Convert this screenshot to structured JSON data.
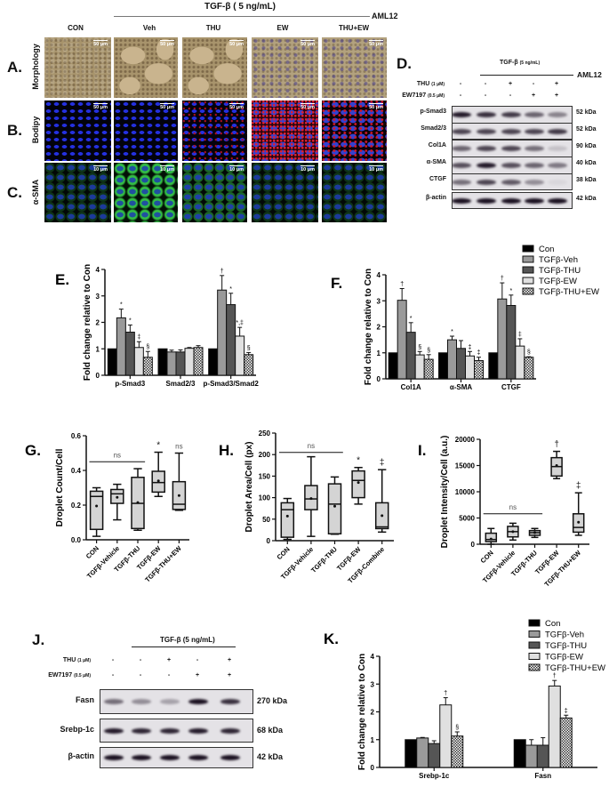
{
  "header": {
    "treatment": "TGF-β ( 5 ng/mL)",
    "cell_line": "AML12",
    "columns": [
      "CON",
      "Veh",
      "THU",
      "EW",
      "THU+EW"
    ]
  },
  "rows": [
    {
      "letter": "A.",
      "label": "Morphology",
      "scale": "50 μm"
    },
    {
      "letter": "B.",
      "label": "Bodipy",
      "scale": "50 μm"
    },
    {
      "letter": "C.",
      "label": "α-SMA",
      "scale": "10 μm"
    }
  ],
  "panel_d": {
    "letter": "D.",
    "treatment": "TGF-β",
    "treatment_conc": "(5 ng/mL)",
    "cell_line": "AML12",
    "conditions": [
      {
        "name": "THU",
        "conc": "(1 μM)",
        "lanes": [
          "-",
          "-",
          "+",
          "-",
          "+"
        ]
      },
      {
        "name": "EW7197",
        "conc": "(0.5 μM)",
        "lanes": [
          "-",
          "-",
          "-",
          "+",
          "+"
        ]
      }
    ],
    "blots": [
      {
        "protein": "p-Smad3",
        "kda": "52 kDa",
        "band_intensity": [
          0.95,
          0.85,
          0.8,
          0.6,
          0.45
        ]
      },
      {
        "protein": "Smad2/3",
        "kda": "52 kDa",
        "band_intensity": [
          0.75,
          0.75,
          0.75,
          0.75,
          0.8
        ]
      },
      {
        "protein": "Col1A",
        "kda": "90 kDa",
        "band_intensity": [
          0.6,
          0.75,
          0.75,
          0.55,
          0.15
        ]
      },
      {
        "protein": "α-SMA",
        "kda": "40 kDa",
        "band_intensity": [
          0.7,
          0.95,
          0.7,
          0.6,
          0.5
        ]
      },
      {
        "protein": "CTGF",
        "kda": "38 kDa",
        "band_intensity": [
          0.55,
          0.75,
          0.65,
          0.4,
          0.05
        ]
      },
      {
        "protein": "β-actin",
        "kda": "42 kDa",
        "band_intensity": [
          1,
          1,
          1,
          1,
          1
        ]
      }
    ]
  },
  "panel_j": {
    "letter": "J.",
    "treatment": "TGF-β (5 ng/mL)",
    "conditions": [
      {
        "name": "THU",
        "conc": "(1 μM)",
        "lanes": [
          "-",
          "-",
          "+",
          "-",
          "+"
        ]
      },
      {
        "name": "EW7197",
        "conc": "(0.5 μM)",
        "lanes": [
          "-",
          "-",
          "-",
          "+",
          "+"
        ]
      }
    ],
    "blots": [
      {
        "protein": "Fasn",
        "kda": "270  kDa",
        "band_intensity": [
          0.55,
          0.4,
          0.3,
          1,
          0.85
        ]
      },
      {
        "protein": "Srebp-1c",
        "kda": "68  kDa",
        "band_intensity": [
          0.95,
          0.9,
          0.9,
          0.95,
          0.9
        ]
      },
      {
        "protein": "β-actin",
        "kda": "42  kDa",
        "band_intensity": [
          1,
          1,
          1,
          1,
          1
        ]
      }
    ]
  },
  "colors": {
    "Con": "#000000",
    "TGFβ-Veh": "#9a9a9a",
    "TGFβ-THU": "#555555",
    "TGFβ-EW": "#e0e0e0",
    "TGFβ-THU+EW": "hatched",
    "box_fill": "#d4d4d4"
  },
  "chart_data": [
    {
      "panel": "E.",
      "type": "bar",
      "ylabel": "Fold change relative to Con",
      "ylim": [
        0,
        4
      ],
      "yticks": [
        "0",
        "1",
        "2",
        "3",
        "4"
      ],
      "categories": [
        "p-Smad3",
        "Smad2/3",
        "p-Smad3/Smad2"
      ],
      "series": [
        {
          "name": "Con",
          "values": [
            1,
            1,
            1
          ],
          "errors": [
            0,
            0,
            0
          ],
          "marks": [
            "",
            "",
            ""
          ]
        },
        {
          "name": "TGFβ-Veh",
          "values": [
            2.17,
            0.88,
            3.22
          ],
          "errors": [
            0.33,
            0.07,
            0.55
          ],
          "marks": [
            "*",
            "",
            "†"
          ]
        },
        {
          "name": "TGFβ-THU",
          "values": [
            1.63,
            0.88,
            2.67
          ],
          "errors": [
            0.27,
            0.08,
            0.43
          ],
          "marks": [
            "*",
            "",
            "*"
          ]
        },
        {
          "name": "TGFβ-EW",
          "values": [
            1.05,
            1.02,
            1.48
          ],
          "errors": [
            0.22,
            0.03,
            0.33
          ],
          "marks": [
            "‡",
            "",
            "*,‡"
          ]
        },
        {
          "name": "TGFβ-THU+EW",
          "values": [
            0.68,
            1.05,
            0.78
          ],
          "errors": [
            0.22,
            0.07,
            0.08
          ],
          "marks": [
            "§",
            "",
            "§"
          ]
        }
      ]
    },
    {
      "panel": "F.",
      "type": "bar",
      "ylabel": "Fold change relative to Con",
      "ylim": [
        0,
        4
      ],
      "yticks": [
        "0",
        "1",
        "2",
        "3",
        "4"
      ],
      "categories": [
        "Col1A",
        "α-SMA",
        "CTGF"
      ],
      "legend": [
        "Con",
        "TGFβ-Veh",
        "TGFβ-THU",
        "TGFβ-EW",
        "TGFβ-THU+EW"
      ],
      "legend_position": "top-right",
      "series": [
        {
          "name": "Con",
          "values": [
            1,
            1,
            1
          ],
          "errors": [
            0,
            0,
            0
          ],
          "marks": [
            "",
            "",
            ""
          ]
        },
        {
          "name": "TGFβ-Veh",
          "values": [
            3.02,
            1.5,
            3.07
          ],
          "errors": [
            0.45,
            0.14,
            0.62
          ],
          "marks": [
            "†",
            "*",
            "†"
          ]
        },
        {
          "name": "TGFβ-THU",
          "values": [
            1.79,
            1.17,
            2.82
          ],
          "errors": [
            0.37,
            0.3,
            0.4
          ],
          "marks": [
            "*",
            "",
            "*"
          ]
        },
        {
          "name": "TGFβ-EW",
          "values": [
            0.92,
            0.88,
            1.26
          ],
          "errors": [
            0.13,
            0.17,
            0.28
          ],
          "marks": [
            "§",
            "‡",
            "‡"
          ]
        },
        {
          "name": "TGFβ-THU+EW",
          "values": [
            0.75,
            0.7,
            0.83
          ],
          "errors": [
            0.18,
            0.13,
            0.02
          ],
          "marks": [
            "§",
            "‡",
            "§"
          ]
        }
      ]
    },
    {
      "panel": "G.",
      "type": "box",
      "ylabel": "Droplet Count/Cell",
      "ylim": [
        0,
        0.6
      ],
      "yticks": [
        "0.0",
        "0.2",
        "0.4",
        "0.6"
      ],
      "categories": [
        "CON",
        "TGFβ-Vehicle",
        "TGFβ-THU",
        "TGFβ-EW",
        "TGFβ-THU+EW"
      ],
      "boxes": [
        {
          "min": 0.02,
          "q1": 0.06,
          "median": 0.25,
          "q3": 0.28,
          "max": 0.3,
          "mean": 0.195,
          "mark": ""
        },
        {
          "min": 0.115,
          "q1": 0.21,
          "median": 0.265,
          "q3": 0.29,
          "max": 0.32,
          "mean": 0.245,
          "mark": ""
        },
        {
          "min": 0.055,
          "q1": 0.065,
          "median": 0.21,
          "q3": 0.36,
          "max": 0.41,
          "mean": 0.215,
          "mark": ""
        },
        {
          "min": 0.25,
          "q1": 0.275,
          "median": 0.33,
          "q3": 0.395,
          "max": 0.505,
          "mean": 0.34,
          "mark": "*"
        },
        {
          "min": 0.17,
          "q1": 0.175,
          "median": 0.205,
          "q3": 0.335,
          "max": 0.5,
          "mean": 0.255,
          "mark": "ns"
        }
      ],
      "bracket": {
        "label": "ns",
        "from": 0,
        "to": 2,
        "y": 0.45
      }
    },
    {
      "panel": "H.",
      "type": "box",
      "ylabel": "Droplet Area/Cell (px)",
      "ylim": [
        0,
        250
      ],
      "yticks": [
        "0",
        "50",
        "100",
        "150",
        "200",
        "250"
      ],
      "categories": [
        "CON",
        "TGFβ-Vehicle",
        "TGFβ-THU",
        "TGFβ-EW",
        "TGFβ-Combine"
      ],
      "boxes": [
        {
          "min": 3,
          "q1": 8,
          "median": 72,
          "q3": 88,
          "max": 98,
          "mean": 57,
          "mark": ""
        },
        {
          "min": 10,
          "q1": 72,
          "median": 97,
          "q3": 128,
          "max": 195,
          "mean": 98,
          "mark": ""
        },
        {
          "min": 15,
          "q1": 16,
          "median": 85,
          "q3": 132,
          "max": 148,
          "mean": 80,
          "mark": ""
        },
        {
          "min": 85,
          "q1": 100,
          "median": 140,
          "q3": 162,
          "max": 170,
          "mean": 135,
          "mark": "*"
        },
        {
          "min": 20,
          "q1": 28,
          "median": 32,
          "q3": 88,
          "max": 165,
          "mean": 58,
          "mark": "‡"
        }
      ],
      "bracket": {
        "label": "ns",
        "from": 0,
        "to": 2,
        "y": 205
      }
    },
    {
      "panel": "I.",
      "type": "box",
      "ylabel": "Droplet Intensity/Cell (a.u.)",
      "ylim": [
        0,
        20000
      ],
      "yticks": [
        "0",
        "5000",
        "10000",
        "15000",
        "20000"
      ],
      "categories": [
        "CON",
        "TGFβ-Vehicle",
        "TGFβ-THU",
        "TGFβ-EW",
        "TGFβ-THU+EW"
      ],
      "boxes": [
        {
          "min": 0,
          "q1": 500,
          "median": 900,
          "q3": 2100,
          "max": 3000,
          "mean": 1000,
          "mark": ""
        },
        {
          "min": 800,
          "q1": 1400,
          "median": 2400,
          "q3": 3400,
          "max": 4000,
          "mean": 2400,
          "mark": ""
        },
        {
          "min": 1300,
          "q1": 1700,
          "median": 2200,
          "q3": 2600,
          "max": 3000,
          "mean": 2200,
          "mark": ""
        },
        {
          "min": 12500,
          "q1": 13000,
          "median": 14800,
          "q3": 16500,
          "max": 17700,
          "mean": 15000,
          "mark": "†"
        },
        {
          "min": 1700,
          "q1": 2300,
          "median": 3200,
          "q3": 5800,
          "max": 9800,
          "mean": 4200,
          "mark": "‡"
        }
      ],
      "bracket": {
        "label": "ns",
        "from": 0,
        "to": 2,
        "y": 5800
      }
    },
    {
      "panel": "K.",
      "type": "bar",
      "ylabel": "Fold change relative to Con",
      "ylim": [
        0,
        4
      ],
      "yticks": [
        "0",
        "1",
        "2",
        "3",
        "4"
      ],
      "categories": [
        "Srebp-1c",
        "Fasn"
      ],
      "legend": [
        "Con",
        "TGFβ-Veh",
        "TGFβ-THU",
        "TGFβ-EW",
        "TGFβ-THU+EW"
      ],
      "legend_position": "top-right",
      "series": [
        {
          "name": "Con",
          "values": [
            1,
            1
          ],
          "errors": [
            0,
            0
          ],
          "marks": [
            "",
            ""
          ]
        },
        {
          "name": "TGFβ-Veh",
          "values": [
            1.06,
            0.8
          ],
          "errors": [
            0.02,
            0.2
          ],
          "marks": [
            "",
            ""
          ]
        },
        {
          "name": "TGFβ-THU",
          "values": [
            0.86,
            0.8
          ],
          "errors": [
            0.1,
            0.27
          ],
          "marks": [
            "",
            ""
          ]
        },
        {
          "name": "TGFβ-EW",
          "values": [
            2.25,
            2.93
          ],
          "errors": [
            0.26,
            0.2
          ],
          "marks": [
            "†",
            "†"
          ]
        },
        {
          "name": "TGFβ-THU+EW",
          "values": [
            1.13,
            1.78
          ],
          "errors": [
            0.15,
            0.1
          ],
          "marks": [
            "§",
            "‡"
          ]
        }
      ]
    }
  ]
}
